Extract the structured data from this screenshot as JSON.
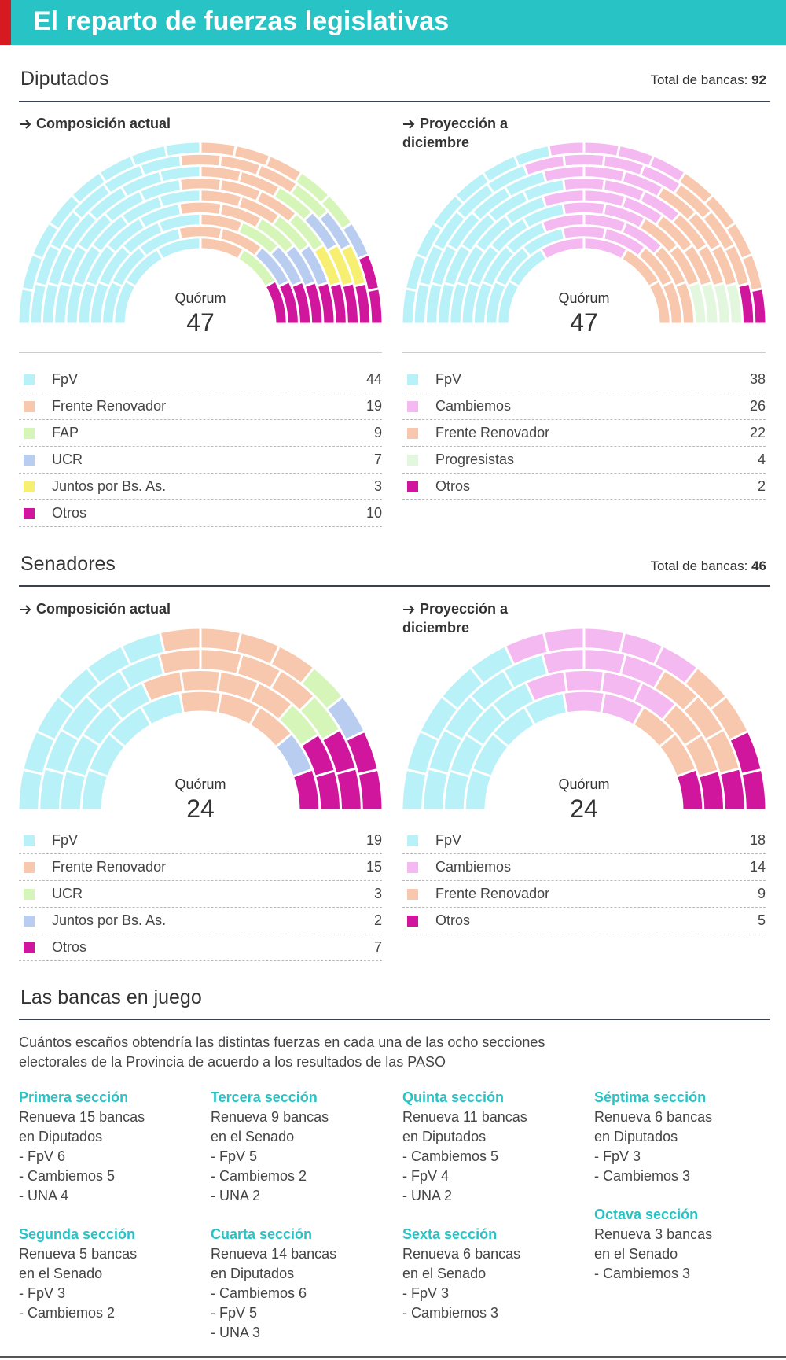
{
  "title": "El reparto de fuerzas legislativas",
  "sections": [
    {
      "name": "Diputados",
      "total_label": "Total de bancas:",
      "total": 92
    },
    {
      "name": "Senadores",
      "total_label": "Total de bancas:",
      "total": 46
    }
  ],
  "chart_data": [
    {
      "type": "parliament",
      "title": "Composición actual",
      "quorum_label": "Quórum",
      "quorum": 47,
      "categories": [
        "FpV",
        "Frente Renovador",
        "FAP",
        "UCR",
        "Juntos por Bs. As.",
        "Otros"
      ],
      "values": [
        44,
        19,
        9,
        7,
        3,
        10
      ],
      "colors": [
        "#b8f1f7",
        "#f7c8ad",
        "#d6f5b9",
        "#b9cdf0",
        "#f6ef72",
        "#d0169c"
      ]
    },
    {
      "type": "parliament",
      "title": "Proyección a diciembre",
      "quorum_label": "Quórum",
      "quorum": 47,
      "categories": [
        "FpV",
        "Cambiemos",
        "Frente Renovador",
        "Progresistas",
        "Otros"
      ],
      "values": [
        38,
        26,
        22,
        4,
        2
      ],
      "colors": [
        "#b8f1f7",
        "#f5b9f1",
        "#f7c8ad",
        "#e3f7df",
        "#d0169c"
      ]
    },
    {
      "type": "parliament",
      "title": "Composición actual",
      "quorum_label": "Quórum",
      "quorum": 24,
      "categories": [
        "FpV",
        "Frente Renovador",
        "UCR",
        "Juntos por Bs. As.",
        "Otros"
      ],
      "values": [
        19,
        15,
        3,
        2,
        7
      ],
      "colors": [
        "#b8f1f7",
        "#f7c8ad",
        "#d6f5b9",
        "#b9cdf0",
        "#d0169c"
      ]
    },
    {
      "type": "parliament",
      "title": "Proyección a diciembre",
      "quorum_label": "Quórum",
      "quorum": 24,
      "categories": [
        "FpV",
        "Cambiemos",
        "Frente Renovador",
        "Otros"
      ],
      "values": [
        18,
        14,
        9,
        5
      ],
      "colors": [
        "#b8f1f7",
        "#f5b9f1",
        "#f7c8ad",
        "#d0169c"
      ]
    }
  ],
  "bancas": {
    "title": "Las bancas en juego",
    "description": [
      "Cuántos escaños obtendría las distintas fuerzas en cada una de las ocho secciones",
      "electorales de la Provincia de acuerdo a los resultados de las PASO"
    ],
    "sections": [
      {
        "name": "Primera sección",
        "lines": [
          "Renueva 15 bancas",
          "en Diputados",
          "- FpV 6",
          "- Cambiemos 5",
          "- UNA  4"
        ]
      },
      {
        "name": "Segunda sección",
        "lines": [
          "Renueva 5 bancas",
          "en el Senado",
          "- FpV 3",
          "- Cambiemos 2"
        ]
      },
      {
        "name": "Tercera sección",
        "lines": [
          "Renueva 9 bancas",
          "en el Senado",
          "- FpV 5",
          "- Cambiemos 2",
          "- UNA  2"
        ]
      },
      {
        "name": "Cuarta sección",
        "lines": [
          "Renueva 14 bancas",
          "en Diputados",
          "- Cambiemos 6",
          "- FpV 5",
          "- UNA  3"
        ]
      },
      {
        "name": "Quinta sección",
        "lines": [
          "Renueva 11 bancas",
          "en Diputados",
          "- Cambiemos 5",
          "- FpV 4",
          "- UNA  2"
        ]
      },
      {
        "name": "Sexta sección",
        "lines": [
          "Renueva 6 bancas",
          "en el Senado",
          "- FpV 3",
          "- Cambiemos 3"
        ]
      },
      {
        "name": "Séptima sección",
        "lines": [
          "Renueva 6 bancas",
          "en Diputados",
          "- FpV 3",
          "- Cambiemos 3"
        ]
      },
      {
        "name": "Octava sección",
        "lines": [
          "Renueva 3 bancas",
          "en el Senado",
          "- Cambiemos 3"
        ]
      }
    ]
  }
}
